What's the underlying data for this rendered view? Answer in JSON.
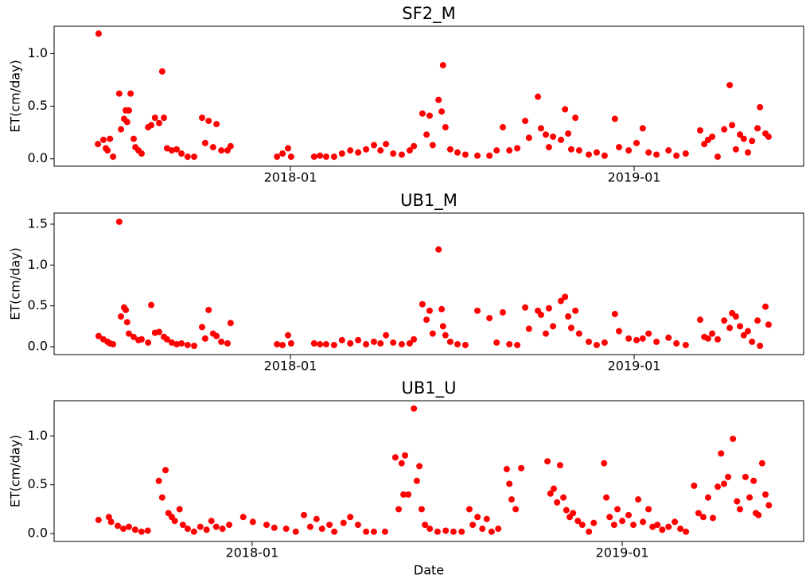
{
  "chart_data": [
    {
      "type": "scatter",
      "title": "SF2_M",
      "ylabel": "ET(cm/day)",
      "color": "#ff0000",
      "xlim": [
        2017.3125,
        2019.493
      ],
      "xticks": [
        {
          "value": 2018,
          "label": "2018-01"
        },
        {
          "value": 2019,
          "label": "2019-01"
        }
      ],
      "ylim": [
        -0.07,
        1.26
      ],
      "yticks": [
        {
          "value": 0,
          "label": "0.0"
        },
        {
          "value": 0.5,
          "label": "0.5"
        },
        {
          "value": 1,
          "label": "1.0"
        }
      ],
      "x": [
        2017.442,
        2017.44,
        2017.456,
        2017.463,
        2017.468,
        2017.475,
        2017.484,
        2017.502,
        2017.507,
        2017.516,
        2017.521,
        2017.53,
        2017.535,
        2017.525,
        2017.544,
        2017.549,
        2017.558,
        2017.567,
        2017.586,
        2017.595,
        2017.606,
        2017.627,
        2017.618,
        2017.632,
        2017.641,
        2017.655,
        2017.669,
        2017.683,
        2017.701,
        2017.72,
        2017.743,
        2017.752,
        2017.762,
        2017.775,
        2017.785,
        2017.799,
        2017.817,
        2017.826,
        2017.961,
        2017.977,
        2017.993,
        2018.002,
        2018.069,
        2018.086,
        2018.104,
        2018.127,
        2018.15,
        2018.174,
        2018.197,
        2018.22,
        2018.243,
        2018.262,
        2018.278,
        2018.299,
        2018.324,
        2018.347,
        2018.359,
        2018.384,
        2018.396,
        2018.405,
        2018.414,
        2018.431,
        2018.44,
        2018.444,
        2018.451,
        2018.465,
        2018.486,
        2018.509,
        2018.544,
        2018.579,
        2018.6,
        2018.618,
        2018.637,
        2018.66,
        2018.683,
        2018.694,
        2018.72,
        2018.729,
        2018.743,
        2018.752,
        2018.764,
        2018.787,
        2018.799,
        2018.808,
        2018.817,
        2018.829,
        2018.84,
        2018.868,
        2018.891,
        2018.914,
        2018.944,
        2018.956,
        2018.984,
        2019.007,
        2019.025,
        2019.042,
        2019.065,
        2019.1,
        2019.123,
        2019.15,
        2019.192,
        2019.204,
        2019.215,
        2019.227,
        2019.243,
        2019.262,
        2019.278,
        2019.285,
        2019.296,
        2019.308,
        2019.319,
        2019.331,
        2019.343,
        2019.359,
        2019.366,
        2019.382,
        2019.391
      ],
      "values": [
        1.19,
        0.14,
        0.18,
        0.1,
        0.08,
        0.19,
        0.02,
        0.62,
        0.28,
        0.38,
        0.46,
        0.46,
        0.62,
        0.35,
        0.19,
        0.11,
        0.08,
        0.05,
        0.3,
        0.32,
        0.39,
        0.83,
        0.34,
        0.39,
        0.1,
        0.08,
        0.09,
        0.05,
        0.02,
        0.02,
        0.39,
        0.15,
        0.36,
        0.11,
        0.33,
        0.08,
        0.08,
        0.12,
        0.02,
        0.05,
        0.1,
        0.02,
        0.02,
        0.03,
        0.02,
        0.02,
        0.05,
        0.08,
        0.06,
        0.09,
        0.13,
        0.08,
        0.14,
        0.05,
        0.04,
        0.08,
        0.12,
        0.43,
        0.23,
        0.41,
        0.13,
        0.56,
        0.45,
        0.89,
        0.3,
        0.09,
        0.06,
        0.04,
        0.03,
        0.03,
        0.08,
        0.3,
        0.08,
        0.1,
        0.36,
        0.2,
        0.59,
        0.29,
        0.23,
        0.11,
        0.21,
        0.18,
        0.47,
        0.24,
        0.09,
        0.39,
        0.08,
        0.04,
        0.06,
        0.03,
        0.38,
        0.11,
        0.08,
        0.15,
        0.29,
        0.06,
        0.04,
        0.08,
        0.03,
        0.05,
        0.27,
        0.14,
        0.18,
        0.21,
        0.02,
        0.28,
        0.7,
        0.32,
        0.09,
        0.23,
        0.19,
        0.06,
        0.17,
        0.29,
        0.49,
        0.24,
        0.21
      ]
    },
    {
      "type": "scatter",
      "title": "UB1_M",
      "ylabel": "ET(cm/day)",
      "color": "#ff0000",
      "xlim": [
        2017.3125,
        2019.493
      ],
      "xticks": [
        {
          "value": 2018,
          "label": "2018-01"
        },
        {
          "value": 2019,
          "label": "2019-01"
        }
      ],
      "ylim": [
        -0.097,
        1.636
      ],
      "yticks": [
        {
          "value": 0,
          "label": "0.0"
        },
        0.5,
        {
          "value": 1,
          "label": "1.0"
        },
        1.5
      ],
      "x": [
        2017.442,
        2017.456,
        2017.468,
        2017.475,
        2017.484,
        2017.502,
        2017.507,
        2017.516,
        2017.521,
        2017.525,
        2017.53,
        2017.544,
        2017.558,
        2017.567,
        2017.586,
        2017.595,
        2017.606,
        2017.618,
        2017.632,
        2017.641,
        2017.655,
        2017.669,
        2017.683,
        2017.701,
        2017.72,
        2017.743,
        2017.752,
        2017.762,
        2017.775,
        2017.785,
        2017.799,
        2017.817,
        2017.826,
        2017.961,
        2017.977,
        2017.993,
        2018.002,
        2018.069,
        2018.086,
        2018.104,
        2018.127,
        2018.15,
        2018.174,
        2018.197,
        2018.22,
        2018.243,
        2018.262,
        2018.278,
        2018.299,
        2018.324,
        2018.347,
        2018.359,
        2018.384,
        2018.396,
        2018.405,
        2018.414,
        2018.431,
        2018.44,
        2018.444,
        2018.451,
        2018.465,
        2018.486,
        2018.509,
        2018.544,
        2018.579,
        2018.6,
        2018.618,
        2018.637,
        2018.66,
        2018.683,
        2018.694,
        2018.72,
        2018.729,
        2018.743,
        2018.752,
        2018.764,
        2018.787,
        2018.799,
        2018.808,
        2018.817,
        2018.829,
        2018.84,
        2018.868,
        2018.891,
        2018.914,
        2018.944,
        2018.956,
        2018.984,
        2019.007,
        2019.025,
        2019.042,
        2019.065,
        2019.1,
        2019.123,
        2019.15,
        2019.192,
        2019.204,
        2019.215,
        2019.227,
        2019.243,
        2019.262,
        2019.278,
        2019.285,
        2019.296,
        2019.308,
        2019.319,
        2019.331,
        2019.343,
        2019.359,
        2019.366,
        2019.382,
        2019.391
      ],
      "values": [
        0.13,
        0.09,
        0.06,
        0.04,
        0.03,
        1.53,
        0.37,
        0.48,
        0.45,
        0.3,
        0.16,
        0.12,
        0.08,
        0.09,
        0.05,
        0.51,
        0.17,
        0.18,
        0.12,
        0.09,
        0.05,
        0.03,
        0.04,
        0.02,
        0.01,
        0.24,
        0.1,
        0.45,
        0.16,
        0.13,
        0.06,
        0.04,
        0.29,
        0.03,
        0.02,
        0.14,
        0.04,
        0.04,
        0.03,
        0.03,
        0.02,
        0.08,
        0.04,
        0.08,
        0.03,
        0.06,
        0.04,
        0.14,
        0.05,
        0.03,
        0.04,
        0.09,
        0.52,
        0.33,
        0.44,
        0.16,
        1.19,
        0.46,
        0.25,
        0.14,
        0.06,
        0.03,
        0.02,
        0.44,
        0.35,
        0.05,
        0.42,
        0.03,
        0.02,
        0.48,
        0.22,
        0.44,
        0.39,
        0.16,
        0.47,
        0.25,
        0.56,
        0.61,
        0.37,
        0.23,
        0.44,
        0.16,
        0.06,
        0.02,
        0.05,
        0.4,
        0.19,
        0.1,
        0.08,
        0.1,
        0.16,
        0.06,
        0.11,
        0.04,
        0.02,
        0.33,
        0.12,
        0.1,
        0.16,
        0.09,
        0.32,
        0.23,
        0.41,
        0.37,
        0.25,
        0.14,
        0.19,
        0.06,
        0.32,
        0.01,
        0.49,
        0.27
      ]
    },
    {
      "type": "scatter",
      "title": "UB1_U",
      "ylabel": "ET(cm/day)",
      "xlabel": "Date",
      "color": "#ff0000",
      "xlim": [
        2017.465,
        2019.49
      ],
      "xticks": [
        {
          "value": 2018,
          "label": "2018-01"
        },
        {
          "value": 2019,
          "label": "2019-01"
        }
      ],
      "ylim": [
        -0.08,
        1.36
      ],
      "yticks": [
        {
          "value": 0,
          "label": "0.0"
        },
        0.5,
        {
          "value": 1,
          "label": "1.0"
        }
      ],
      "x": [
        2017.585,
        2017.613,
        2017.619,
        2017.637,
        2017.652,
        2017.667,
        2017.684,
        2017.701,
        2017.718,
        2017.748,
        2017.757,
        2017.766,
        2017.774,
        2017.783,
        2017.791,
        2017.804,
        2017.813,
        2017.826,
        2017.843,
        2017.86,
        2017.877,
        2017.89,
        2017.903,
        2017.92,
        2017.938,
        2017.976,
        2018.002,
        2018.039,
        2018.06,
        2018.092,
        2018.118,
        2018.14,
        2018.157,
        2018.174,
        2018.189,
        2018.209,
        2018.222,
        2018.247,
        2018.265,
        2018.286,
        2018.308,
        2018.329,
        2018.359,
        2018.387,
        2018.396,
        2018.404,
        2018.409,
        2018.413,
        2018.422,
        2018.437,
        2018.445,
        2018.452,
        2018.458,
        2018.467,
        2018.48,
        2018.501,
        2018.523,
        2018.544,
        2018.566,
        2018.587,
        2018.596,
        2018.609,
        2018.622,
        2018.634,
        2018.647,
        2018.665,
        2018.688,
        2018.695,
        2018.701,
        2018.712,
        2018.727,
        2018.798,
        2018.806,
        2018.815,
        2018.824,
        2018.832,
        2018.841,
        2018.849,
        2018.858,
        2018.867,
        2018.88,
        2018.892,
        2018.91,
        2018.923,
        2018.951,
        2018.957,
        2018.966,
        2018.978,
        2018.987,
        2019.0,
        2019.017,
        2019.03,
        2019.043,
        2019.056,
        2019.071,
        2019.082,
        2019.095,
        2019.108,
        2019.125,
        2019.142,
        2019.157,
        2019.172,
        2019.194,
        2019.206,
        2019.219,
        2019.232,
        2019.245,
        2019.258,
        2019.267,
        2019.275,
        2019.286,
        2019.299,
        2019.31,
        2019.318,
        2019.333,
        2019.344,
        2019.355,
        2019.361,
        2019.368,
        2019.378,
        2019.387,
        2019.396
      ],
      "values": [
        0.14,
        0.17,
        0.12,
        0.08,
        0.05,
        0.07,
        0.04,
        0.02,
        0.03,
        0.54,
        0.37,
        0.65,
        0.21,
        0.17,
        0.13,
        0.25,
        0.09,
        0.05,
        0.02,
        0.07,
        0.04,
        0.13,
        0.07,
        0.05,
        0.09,
        0.17,
        0.12,
        0.09,
        0.06,
        0.05,
        0.02,
        0.19,
        0.07,
        0.15,
        0.05,
        0.09,
        0.02,
        0.11,
        0.17,
        0.09,
        0.02,
        0.02,
        0.02,
        0.78,
        0.25,
        0.72,
        0.4,
        0.8,
        0.4,
        1.28,
        0.54,
        0.69,
        0.25,
        0.09,
        0.05,
        0.02,
        0.03,
        0.02,
        0.02,
        0.25,
        0.09,
        0.17,
        0.05,
        0.15,
        0.02,
        0.05,
        0.66,
        0.51,
        0.35,
        0.25,
        0.67,
        0.74,
        0.41,
        0.46,
        0.32,
        0.7,
        0.37,
        0.24,
        0.17,
        0.21,
        0.13,
        0.09,
        0.02,
        0.11,
        0.72,
        0.37,
        0.17,
        0.09,
        0.25,
        0.13,
        0.19,
        0.09,
        0.35,
        0.12,
        0.25,
        0.07,
        0.09,
        0.04,
        0.07,
        0.12,
        0.05,
        0.02,
        0.49,
        0.21,
        0.17,
        0.37,
        0.16,
        0.48,
        0.82,
        0.51,
        0.58,
        0.97,
        0.33,
        0.25,
        0.58,
        0.37,
        0.54,
        0.21,
        0.19,
        0.72,
        0.4,
        0.29
      ]
    }
  ]
}
